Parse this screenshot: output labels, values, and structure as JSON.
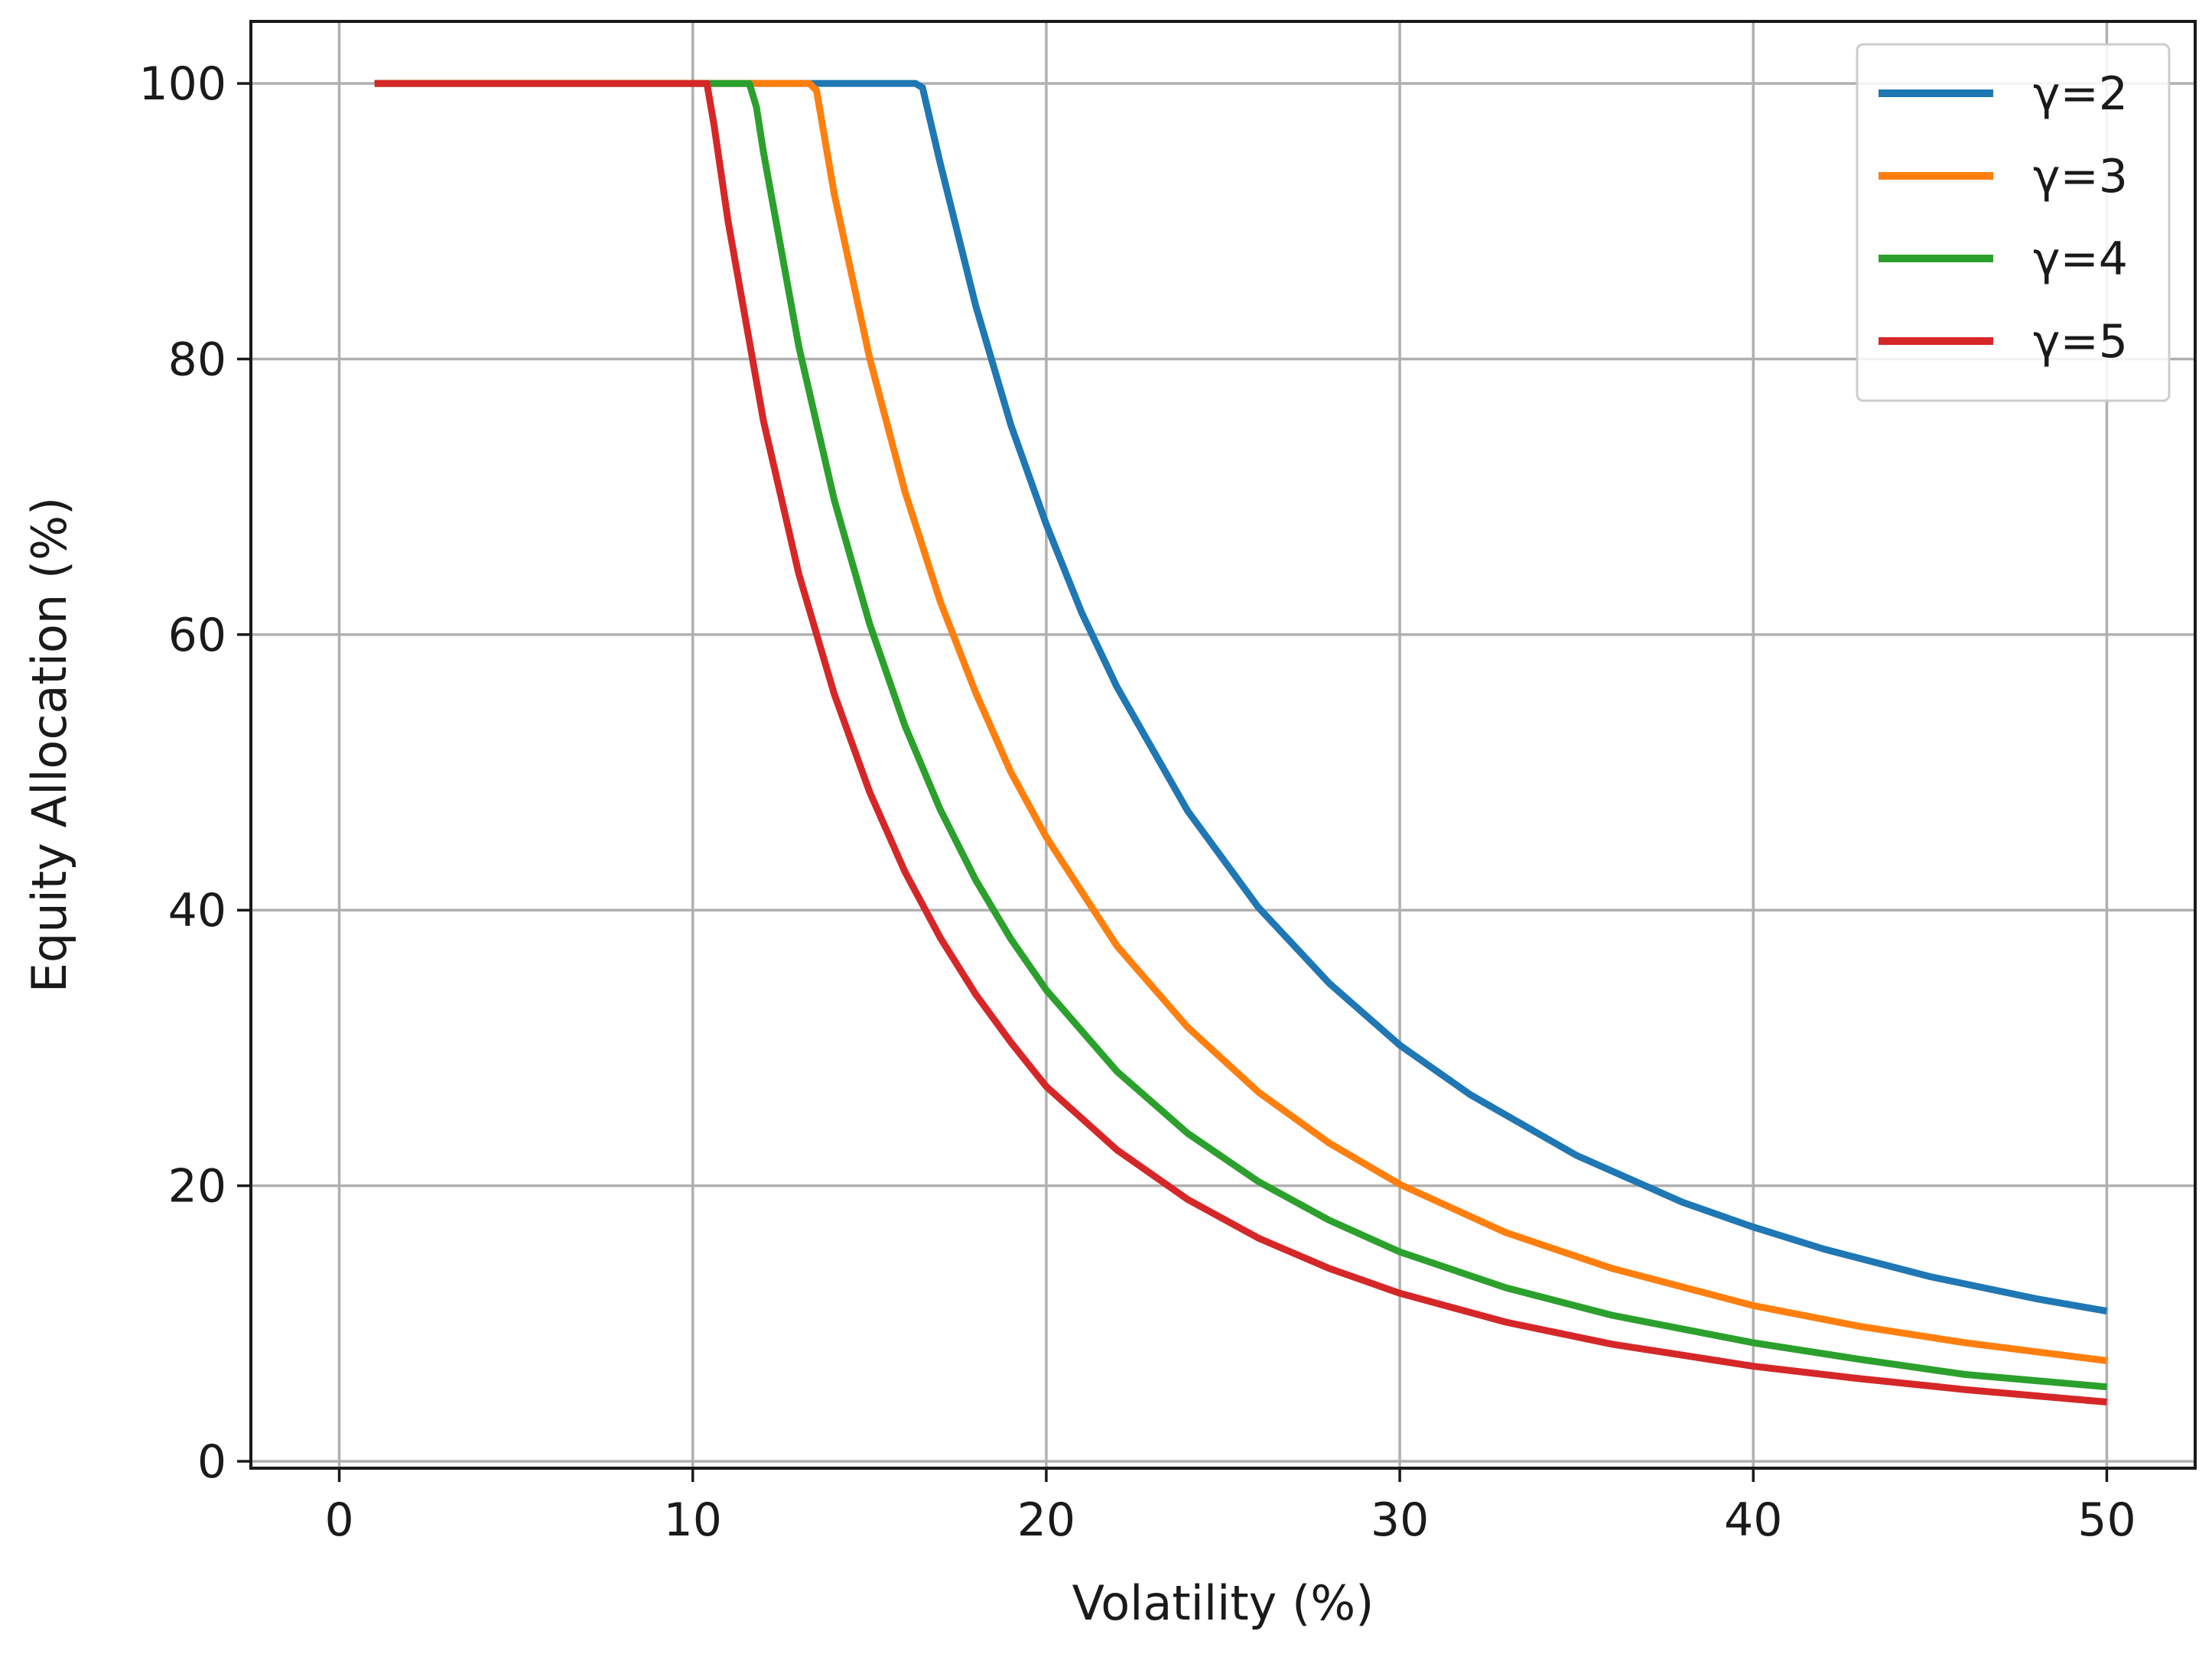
{
  "chart_data": {
    "type": "line",
    "xlabel": "Volatility (%)",
    "ylabel": "Equity Allocation (%)",
    "xlim": [
      -2.5,
      52.5
    ],
    "ylim": [
      -0.5,
      104.5
    ],
    "xticks": [
      0,
      10,
      20,
      30,
      40,
      50
    ],
    "yticks": [
      0,
      20,
      40,
      60,
      80,
      100
    ],
    "grid": true,
    "legend_position": "top-right",
    "formula_note": "",
    "series": [
      {
        "name": "γ=2",
        "color": "#1f77b4",
        "x": [
          1,
          5,
          10,
          15,
          16.3,
          16.5,
          17,
          18,
          19,
          20,
          21,
          22,
          24,
          26,
          28,
          30,
          32,
          35,
          38,
          40,
          42,
          45,
          48,
          50
        ],
        "y": [
          100,
          100,
          100,
          100,
          100,
          99.7,
          94.2,
          83.9,
          75.2,
          68.0,
          61.6,
          56.2,
          47.2,
          40.2,
          34.7,
          30.2,
          26.6,
          22.2,
          18.8,
          17.0,
          15.4,
          13.4,
          11.8,
          10.9
        ]
      },
      {
        "name": "γ=3",
        "color": "#ff7f0e",
        "x": [
          1,
          5,
          10,
          13.3,
          13.5,
          14,
          15,
          16,
          17,
          18,
          19,
          20,
          22,
          24,
          26,
          28,
          30,
          33,
          36,
          40,
          43,
          46,
          50
        ],
        "y": [
          100,
          100,
          100,
          100,
          99.5,
          92.0,
          80.1,
          70.4,
          62.4,
          55.8,
          50.0,
          45.3,
          37.4,
          31.5,
          26.8,
          23.1,
          20.1,
          16.6,
          14.0,
          11.3,
          9.8,
          8.6,
          7.3
        ]
      },
      {
        "name": "γ=4",
        "color": "#2ca02c",
        "x": [
          1,
          5,
          10,
          11.6,
          11.8,
          12,
          13,
          14,
          15,
          16,
          17,
          18,
          19,
          20,
          22,
          24,
          26,
          28,
          30,
          33,
          36,
          40,
          43,
          46,
          50
        ],
        "y": [
          100,
          100,
          100,
          100,
          98.3,
          95.0,
          80.9,
          69.8,
          60.8,
          53.4,
          47.3,
          42.2,
          37.9,
          34.2,
          28.3,
          23.8,
          20.3,
          17.5,
          15.2,
          12.6,
          10.6,
          8.6,
          7.4,
          6.3,
          5.4
        ]
      },
      {
        "name": "γ=5",
        "color": "#d62728",
        "x": [
          1,
          5,
          10,
          10.4,
          10.6,
          11,
          12,
          13,
          14,
          15,
          16,
          17,
          18,
          19,
          20,
          22,
          24,
          26,
          28,
          30,
          33,
          36,
          40,
          43,
          46,
          50
        ],
        "y": [
          100,
          100,
          100,
          100,
          97.0,
          90.0,
          75.5,
          64.4,
          55.7,
          48.6,
          42.8,
          38.0,
          33.9,
          30.4,
          27.2,
          22.6,
          19.0,
          16.2,
          14.0,
          12.2,
          10.1,
          8.5,
          6.9,
          6.0,
          5.2,
          4.3
        ]
      }
    ]
  }
}
